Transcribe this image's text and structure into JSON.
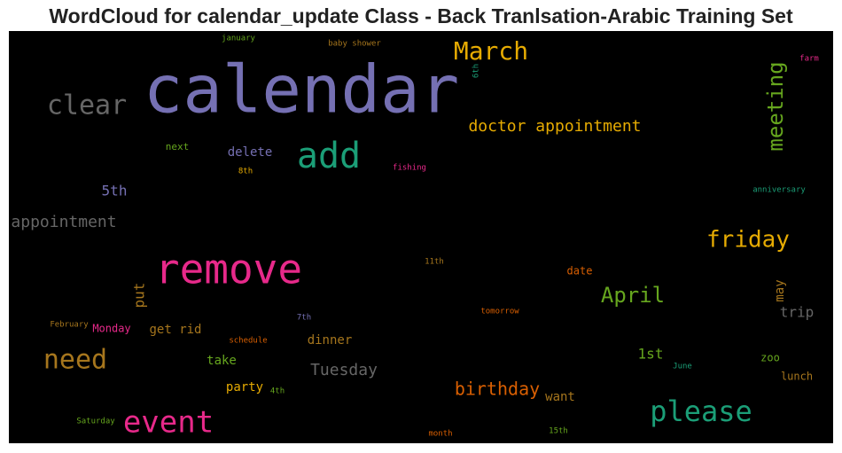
{
  "chart_data": {
    "type": "wordcloud",
    "title": "WordCloud for calendar_update Class - Back Tranlsation-Arabic Training Set",
    "background": "#000000",
    "words": [
      {
        "text": "calendar",
        "color": "#7570b3"
      },
      {
        "text": "remove",
        "color": "#e7298a"
      },
      {
        "text": "add",
        "color": "#1b9e77"
      },
      {
        "text": "event",
        "color": "#e7298a"
      },
      {
        "text": "please",
        "color": "#1b9e77"
      },
      {
        "text": "need",
        "color": "#a6761d"
      },
      {
        "text": "clear",
        "color": "#666666"
      },
      {
        "text": "March",
        "color": "#e6ab02"
      },
      {
        "text": "meeting",
        "color": "#66a61e"
      },
      {
        "text": "friday",
        "color": "#e6ab02"
      },
      {
        "text": "April",
        "color": "#66a61e"
      },
      {
        "text": "doctor appointment",
        "color": "#e6ab02"
      },
      {
        "text": "appointment",
        "color": "#666666"
      },
      {
        "text": "birthday",
        "color": "#d95f02"
      },
      {
        "text": "Tuesday",
        "color": "#666666"
      },
      {
        "text": "trip",
        "color": "#666666"
      },
      {
        "text": "may",
        "color": "#a6761d"
      },
      {
        "text": "put",
        "color": "#a6761d"
      },
      {
        "text": "5th",
        "color": "#7570b3"
      },
      {
        "text": "delete",
        "color": "#7570b3"
      },
      {
        "text": "next",
        "color": "#66a61e"
      },
      {
        "text": "1st",
        "color": "#66a61e"
      },
      {
        "text": "want",
        "color": "#a6761d"
      },
      {
        "text": "party",
        "color": "#e6ab02"
      },
      {
        "text": "take",
        "color": "#66a61e"
      },
      {
        "text": "dinner",
        "color": "#a6761d"
      },
      {
        "text": "get rid",
        "color": "#a6761d"
      },
      {
        "text": "Monday",
        "color": "#e7298a"
      },
      {
        "text": "February",
        "color": "#a6761d"
      },
      {
        "text": "Saturday",
        "color": "#66a61e"
      },
      {
        "text": "4th",
        "color": "#66a61e"
      },
      {
        "text": "schedule",
        "color": "#d95f02"
      },
      {
        "text": "7th",
        "color": "#7570b3"
      },
      {
        "text": "11th",
        "color": "#a6761d"
      },
      {
        "text": "date",
        "color": "#d95f02"
      },
      {
        "text": "tomorrow",
        "color": "#d95f02"
      },
      {
        "text": "June",
        "color": "#1b9e77"
      },
      {
        "text": "zoo",
        "color": "#66a61e"
      },
      {
        "text": "lunch",
        "color": "#a6761d"
      },
      {
        "text": "month",
        "color": "#d95f02"
      },
      {
        "text": "15th",
        "color": "#66a61e"
      },
      {
        "text": "anniversary",
        "color": "#1b9e77"
      },
      {
        "text": "farm",
        "color": "#e7298a"
      },
      {
        "text": "6th",
        "color": "#1b9e77"
      },
      {
        "text": "baby shower",
        "color": "#a6761d"
      },
      {
        "text": "january",
        "color": "#66a61e"
      },
      {
        "text": "fishing",
        "color": "#e7298a"
      },
      {
        "text": "8th",
        "color": "#e6ab02"
      }
    ]
  }
}
